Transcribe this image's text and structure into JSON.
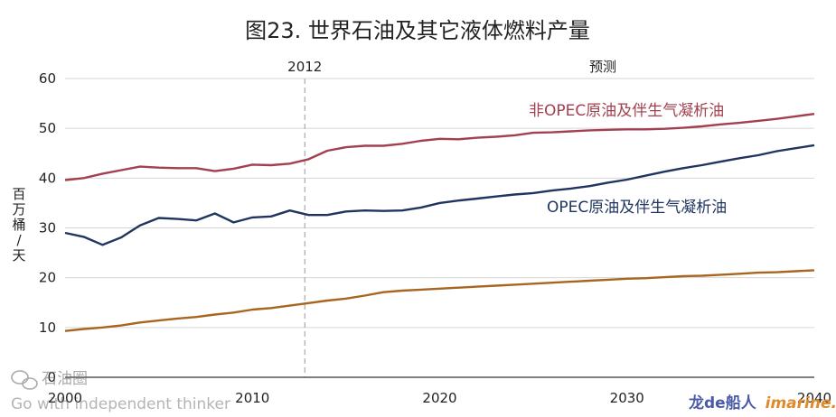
{
  "chart_data": {
    "type": "line",
    "title": "图23. 世界石油及其它液体燃料产量",
    "ylabel": [
      "百",
      "万",
      "桶",
      "/",
      "天"
    ],
    "ylim": [
      0,
      60
    ],
    "yticks": [
      0,
      10,
      20,
      30,
      40,
      50,
      60
    ],
    "xlim": [
      2000,
      2040
    ],
    "xticks": [
      2000,
      2010,
      2020,
      2030,
      2040
    ],
    "grid": true,
    "marker_year": 2012.8,
    "marker_label": "2012",
    "forecast_label": "预测",
    "x": [
      2000,
      2001,
      2002,
      2003,
      2004,
      2005,
      2006,
      2007,
      2008,
      2009,
      2010,
      2011,
      2012,
      2013,
      2014,
      2015,
      2016,
      2017,
      2018,
      2019,
      2020,
      2021,
      2022,
      2023,
      2024,
      2025,
      2026,
      2027,
      2028,
      2029,
      2030,
      2031,
      2032,
      2033,
      2034,
      2035,
      2036,
      2037,
      2038,
      2039,
      2040
    ],
    "series": [
      {
        "name": "非OPEC原油及伴生气凝析油",
        "color": "#a3404f",
        "values": [
          39.6,
          40.0,
          40.9,
          41.6,
          42.3,
          42.1,
          42.0,
          42.0,
          41.4,
          41.9,
          42.7,
          42.6,
          42.9,
          43.8,
          45.5,
          46.2,
          46.5,
          46.5,
          46.9,
          47.5,
          47.9,
          47.8,
          48.1,
          48.3,
          48.6,
          49.1,
          49.2,
          49.4,
          49.6,
          49.7,
          49.8,
          49.8,
          49.9,
          50.1,
          50.4,
          50.8,
          51.1,
          51.5,
          51.9,
          52.4,
          52.9
        ]
      },
      {
        "name": "OPEC原油及伴生气凝析油",
        "color": "#1f3560",
        "values": [
          29.0,
          28.2,
          26.6,
          28.1,
          30.5,
          32.0,
          31.8,
          31.5,
          32.9,
          31.1,
          32.1,
          32.3,
          33.5,
          32.6,
          32.6,
          33.3,
          33.5,
          33.4,
          33.5,
          34.1,
          35.0,
          35.5,
          35.9,
          36.3,
          36.7,
          37.0,
          37.5,
          37.9,
          38.4,
          39.1,
          39.7,
          40.5,
          41.3,
          42.0,
          42.6,
          43.3,
          44.0,
          44.6,
          45.4,
          46.0,
          46.6
        ]
      },
      {
        "name": "",
        "color": "#a8651f",
        "values": [
          9.3,
          9.7,
          10.0,
          10.4,
          11.0,
          11.4,
          11.8,
          12.1,
          12.6,
          13.0,
          13.6,
          13.9,
          14.4,
          14.9,
          15.4,
          15.8,
          16.4,
          17.1,
          17.4,
          17.6,
          17.8,
          18.0,
          18.2,
          18.4,
          18.6,
          18.8,
          19.0,
          19.2,
          19.4,
          19.6,
          19.8,
          19.9,
          20.1,
          20.3,
          20.4,
          20.6,
          20.8,
          21.0,
          21.1,
          21.3,
          21.5
        ]
      }
    ]
  },
  "watermark": {
    "left_logo": "石油圈",
    "left_tagline": "Go with independent thinker",
    "right_brand_a": "龙de船人",
    "right_brand_b": "imarine.cn"
  }
}
